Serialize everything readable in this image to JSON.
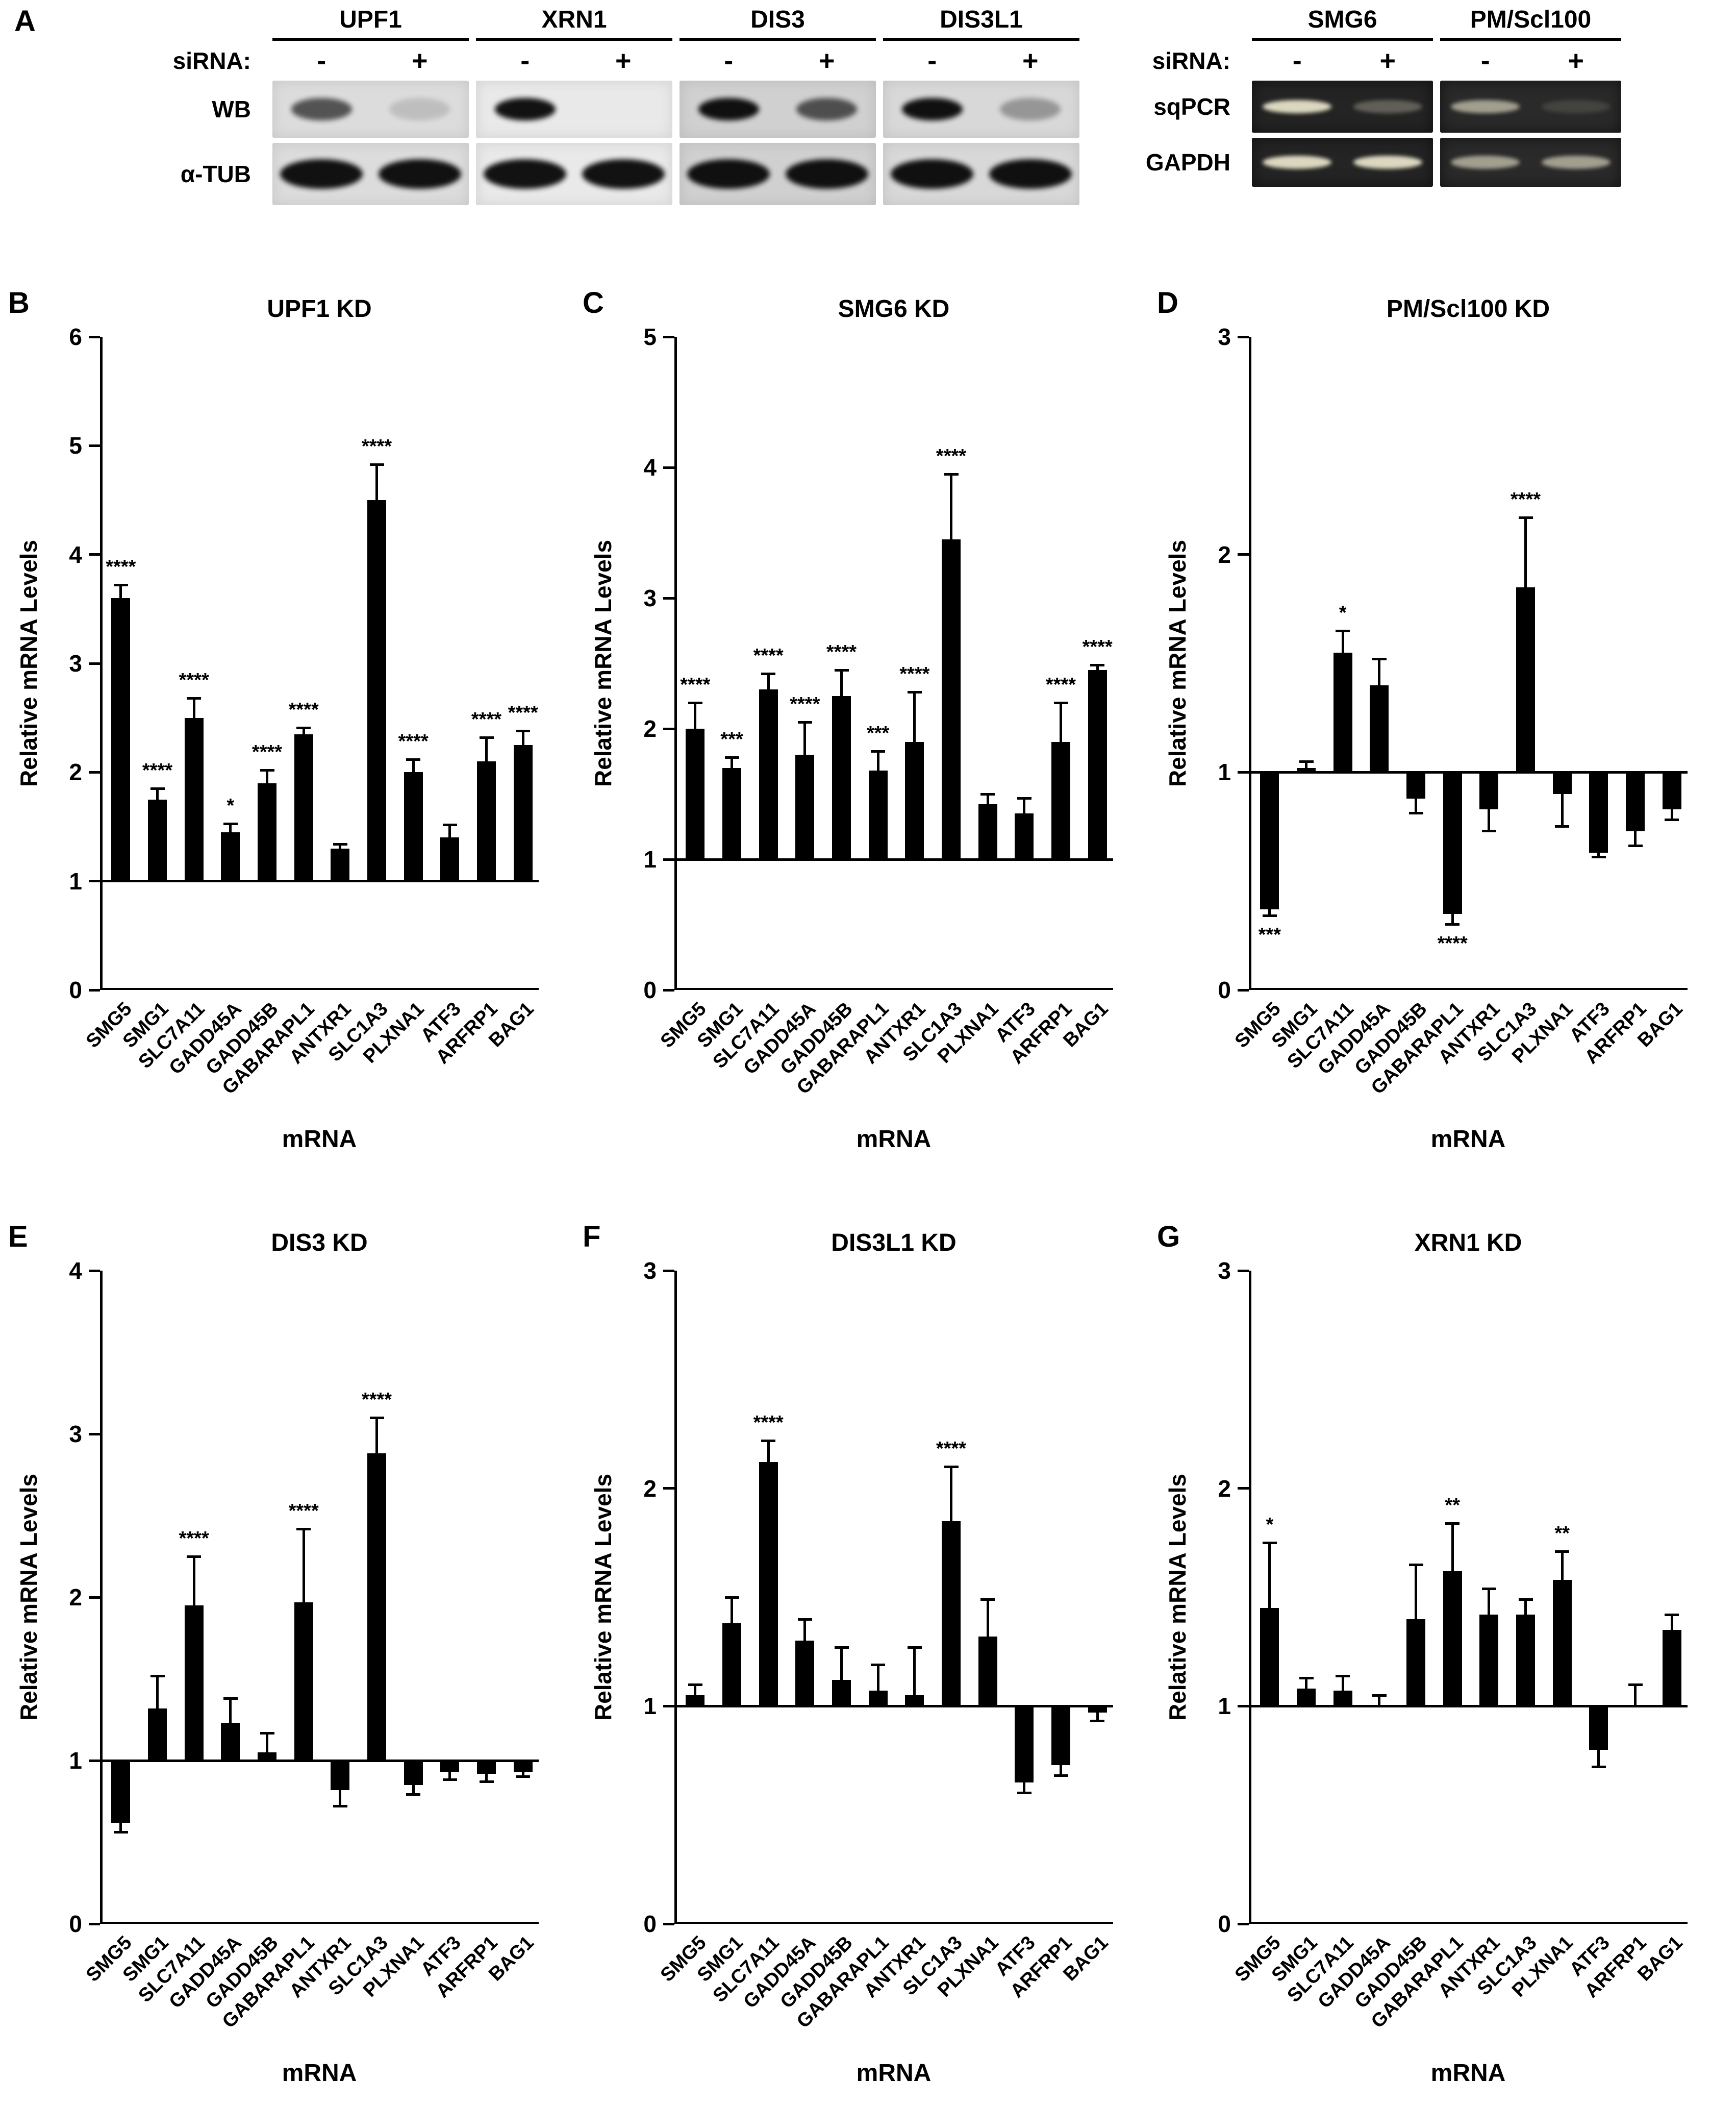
{
  "panel_a": {
    "label": "A",
    "sirna_label": "siRNA:",
    "lane_signs": [
      "-",
      "+"
    ],
    "western": {
      "targets": [
        "UPF1",
        "XRN1",
        "DIS3",
        "DIS3L1"
      ],
      "backgrounds": [
        "#dcdcdc",
        "#e9e9e9",
        "#d0d0d0",
        "#d8d8d8"
      ],
      "rows": [
        {
          "label": "WB",
          "bands": [
            [
              "medium",
              "trace"
            ],
            [
              "strong",
              "none"
            ],
            [
              "strong",
              "medium"
            ],
            [
              "strong",
              "faint"
            ]
          ]
        },
        {
          "label": "α-TUB",
          "bands": [
            [
              "strong",
              "strong"
            ],
            [
              "strong",
              "strong"
            ],
            [
              "strong",
              "strong"
            ],
            [
              "strong",
              "strong"
            ]
          ]
        }
      ]
    },
    "gel": {
      "targets": [
        "SMG6",
        "PM/Scl100"
      ],
      "backgrounds": [
        "#242424",
        "#2a2a2a"
      ],
      "rows": [
        {
          "label": "sqPCR",
          "bands": [
            [
              "strong",
              "faint"
            ],
            [
              "medium",
              "trace"
            ]
          ]
        },
        {
          "label": "GAPDH",
          "bands": [
            [
              "strong",
              "strong"
            ],
            [
              "medium",
              "medium"
            ]
          ]
        }
      ]
    }
  },
  "chart_data": [
    {
      "type": "bar",
      "panel": "B",
      "title": "UPF1 KD",
      "ylabel": "Relative mRNA Levels",
      "xlabel": "mRNA",
      "ylim": [
        0,
        6
      ],
      "yticks": [
        0,
        1,
        2,
        3,
        4,
        5,
        6
      ],
      "baseline": 1,
      "categories": [
        "SMG5",
        "SMG1",
        "SLC7A11",
        "GADD45A",
        "GADD45B",
        "GABARAPL1",
        "ANTXR1",
        "SLC1A3",
        "PLXNA1",
        "ATF3",
        "ARFRP1",
        "BAG1"
      ],
      "values": [
        3.6,
        1.75,
        2.5,
        1.45,
        1.9,
        2.35,
        1.3,
        4.5,
        2.0,
        1.4,
        2.1,
        2.25
      ],
      "errors": [
        0.12,
        0.1,
        0.18,
        0.08,
        0.12,
        0.06,
        0.04,
        0.33,
        0.12,
        0.12,
        0.22,
        0.13
      ],
      "significance": [
        "****",
        "****",
        "****",
        "*",
        "****",
        "****",
        "",
        "****",
        "****",
        "",
        "****",
        "****"
      ]
    },
    {
      "type": "bar",
      "panel": "C",
      "title": "SMG6 KD",
      "ylabel": "Relative mRNA Levels",
      "xlabel": "mRNA",
      "ylim": [
        0,
        5
      ],
      "yticks": [
        0,
        1,
        2,
        3,
        4,
        5
      ],
      "baseline": 1,
      "categories": [
        "SMG5",
        "SMG1",
        "SLC7A11",
        "GADD45A",
        "GADD45B",
        "GABARAPL1",
        "ANTXR1",
        "SLC1A3",
        "PLXNA1",
        "ATF3",
        "ARFRP1",
        "BAG1"
      ],
      "values": [
        2.0,
        1.7,
        2.3,
        1.8,
        2.25,
        1.68,
        1.9,
        3.45,
        1.42,
        1.35,
        1.9,
        2.45
      ],
      "errors": [
        0.2,
        0.08,
        0.12,
        0.25,
        0.2,
        0.15,
        0.38,
        0.5,
        0.08,
        0.12,
        0.3,
        0.04
      ],
      "significance": [
        "****",
        "***",
        "****",
        "****",
        "****",
        "***",
        "****",
        "****",
        "",
        "",
        "****",
        "****"
      ]
    },
    {
      "type": "bar",
      "panel": "D",
      "title": "PM/Scl100 KD",
      "ylabel": "Relative mRNA Levels",
      "xlabel": "mRNA",
      "ylim": [
        0,
        3
      ],
      "yticks": [
        0,
        1,
        2,
        3
      ],
      "baseline": 1,
      "categories": [
        "SMG5",
        "SMG1",
        "SLC7A11",
        "GADD45A",
        "GADD45B",
        "GABARAPL1",
        "ANTXR1",
        "SLC1A3",
        "PLXNA1",
        "ATF3",
        "ARFRP1",
        "BAG1"
      ],
      "values": [
        0.37,
        1.02,
        1.55,
        1.4,
        0.88,
        0.35,
        0.83,
        1.85,
        0.9,
        0.63,
        0.73,
        0.83
      ],
      "errors": [
        0.03,
        0.03,
        0.1,
        0.12,
        0.07,
        0.05,
        0.1,
        0.32,
        0.15,
        0.02,
        0.07,
        0.05
      ],
      "significance": [
        "***",
        "",
        "*",
        "",
        "",
        "****",
        "",
        "****",
        "",
        "",
        "",
        ""
      ]
    },
    {
      "type": "bar",
      "panel": "E",
      "title": "DIS3 KD",
      "ylabel": "Relative mRNA Levels",
      "xlabel": "mRNA",
      "ylim": [
        0,
        4
      ],
      "yticks": [
        0,
        1,
        2,
        3,
        4
      ],
      "baseline": 1,
      "categories": [
        "SMG5",
        "SMG1",
        "SLC7A11",
        "GADD45A",
        "GADD45B",
        "GABARAPL1",
        "ANTXR1",
        "SLC1A3",
        "PLXNA1",
        "ATF3",
        "ARFRP1",
        "BAG1"
      ],
      "values": [
        0.62,
        1.32,
        1.95,
        1.23,
        1.05,
        1.97,
        0.82,
        2.88,
        0.85,
        0.93,
        0.92,
        0.93
      ],
      "errors": [
        0.06,
        0.2,
        0.3,
        0.15,
        0.12,
        0.45,
        0.1,
        0.22,
        0.06,
        0.05,
        0.05,
        0.03
      ],
      "significance": [
        "",
        "",
        "****",
        "",
        "",
        "****",
        "",
        "****",
        "",
        "",
        "",
        ""
      ]
    },
    {
      "type": "bar",
      "panel": "F",
      "title": "DIS3L1 KD",
      "ylabel": "Relative mRNA Levels",
      "xlabel": "mRNA",
      "ylim": [
        0,
        3
      ],
      "yticks": [
        0,
        1,
        2,
        3
      ],
      "baseline": 1,
      "categories": [
        "SMG5",
        "SMG1",
        "SLC7A11",
        "GADD45A",
        "GADD45B",
        "GABARAPL1",
        "ANTXR1",
        "SLC1A3",
        "PLXNA1",
        "ATF3",
        "ARFRP1",
        "BAG1"
      ],
      "values": [
        1.05,
        1.38,
        2.12,
        1.3,
        1.12,
        1.07,
        1.05,
        1.85,
        1.32,
        0.65,
        0.73,
        0.97
      ],
      "errors": [
        0.05,
        0.12,
        0.1,
        0.1,
        0.15,
        0.12,
        0.22,
        0.25,
        0.17,
        0.05,
        0.05,
        0.04
      ],
      "significance": [
        "",
        "",
        "****",
        "",
        "",
        "",
        "",
        "****",
        "",
        "",
        "",
        ""
      ]
    },
    {
      "type": "bar",
      "panel": "G",
      "title": "XRN1 KD",
      "ylabel": "Relative mRNA Levels",
      "xlabel": "mRNA",
      "ylim": [
        0,
        3
      ],
      "yticks": [
        0,
        1,
        2,
        3
      ],
      "baseline": 1,
      "categories": [
        "SMG5",
        "SMG1",
        "SLC7A11",
        "GADD45A",
        "GADD45B",
        "GABARAPL1",
        "ANTXR1",
        "SLC1A3",
        "PLXNA1",
        "ATF3",
        "ARFRP1",
        "BAG1"
      ],
      "values": [
        1.45,
        1.08,
        1.07,
        1.0,
        1.4,
        1.62,
        1.42,
        1.42,
        1.58,
        0.8,
        1.0,
        1.35
      ],
      "errors": [
        0.3,
        0.05,
        0.07,
        0.05,
        0.25,
        0.22,
        0.12,
        0.07,
        0.13,
        0.08,
        0.1,
        0.07
      ],
      "significance": [
        "*",
        "",
        "",
        "",
        "",
        "**",
        "",
        "",
        "**",
        "",
        "",
        ""
      ]
    }
  ]
}
